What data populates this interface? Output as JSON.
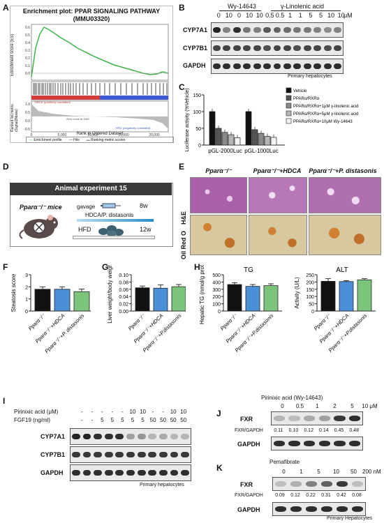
{
  "panels": {
    "A": "A",
    "B": "B",
    "C": "C",
    "D": "D",
    "E": "E",
    "F": "F",
    "G": "G",
    "H": "H",
    "I": "I",
    "J": "J",
    "K": "K"
  },
  "gsea": {
    "title": "Enrichment plot: PPAR SIGNALING PATHWAY",
    "subtitle": "(MMU03320)",
    "ylabel_top": "Enrichment score (ES)",
    "ylabel_bottom": "Ranked list metric (Signal2Noise)",
    "xlabel": "Rank in Ordered Dataset",
    "pos_label": "'HDCA' (positively correlated)",
    "neg_label": "'HFD' (negatively correlated)",
    "zero_cross": "Zero cross at 5387",
    "legend": [
      "Enrichment profile",
      "Hits",
      "Ranking metric scores"
    ],
    "yticks_top": [
      "0.6",
      "0.5",
      "0.4",
      "0.3",
      "0.2",
      "0.1",
      "0.0"
    ],
    "yticks_bottom": [
      "1.0",
      "0.5",
      "0.0",
      "-0.5"
    ],
    "xticks": [
      "0",
      "5,000",
      "10,000",
      "15,000",
      "20,000"
    ]
  },
  "blotB": {
    "group1": "Wy-14643",
    "group2": "γ-Linolenic acid",
    "doses": [
      "0",
      "10",
      "0",
      "10",
      "10",
      "0.5",
      "0.5",
      "1",
      "1",
      "5",
      "5",
      "10",
      "10"
    ],
    "unit": "μM",
    "rows": [
      "CYP7A1",
      "CYP7B1",
      "GAPDH"
    ],
    "caption": "Primary hepatocytes"
  },
  "chart_data": [
    {
      "type": "bar",
      "panel": "C",
      "ylabel": "Luciferase activity (%Vehicle)",
      "ylim": [
        0,
        150
      ],
      "yticks": [
        "0",
        "50",
        "100",
        "150"
      ],
      "categories": [
        "pGL-2000Luc",
        "pGL-1000Luc"
      ],
      "series": [
        {
          "name": "Vehicle",
          "values": [
            100,
            100
          ],
          "color": "#111111"
        },
        {
          "name": "PPARα/RXRα",
          "values": [
            50,
            46
          ],
          "color": "#555555"
        },
        {
          "name": "PPARα/RXRα+1μM γ-linolenic acid",
          "values": [
            38,
            35
          ],
          "color": "#8a8a8a"
        },
        {
          "name": "PPARα/RXRα+5μM γ-linolenic acid",
          "values": [
            31,
            26
          ],
          "color": "#b5b5b5"
        },
        {
          "name": "PPARα/RXRα+10μM Wy-14643",
          "values": [
            22,
            23
          ],
          "color": "#f2f2f2"
        }
      ]
    },
    {
      "type": "bar",
      "panel": "F",
      "ylabel": "Steatosis score",
      "ylim": [
        0,
        3
      ],
      "yticks": [
        "0",
        "1",
        "2",
        "3"
      ],
      "categories": [
        "Pparα⁻/⁻",
        "Pparα⁻/⁻+HDCA",
        "Pparα⁻/⁻+P. distasonis"
      ],
      "values": [
        1.8,
        1.8,
        1.6
      ],
      "errors": [
        0.2,
        0.2,
        0.22
      ],
      "colors": [
        "#111111",
        "#4a90d9",
        "#7cc47c"
      ]
    },
    {
      "type": "bar",
      "panel": "G",
      "ylabel": "Liver weight/body weight",
      "ylim": [
        0,
        0.1
      ],
      "yticks": [
        "0.00",
        "0.02",
        "0.04",
        "0.06",
        "0.08",
        "0.10"
      ],
      "categories": [
        "Pparα⁻/⁻",
        "Pparα⁻/⁻+HDCA",
        "Pparα⁻/⁻+P.distasonis"
      ],
      "values": [
        0.064,
        0.063,
        0.067
      ],
      "errors": [
        0.005,
        0.009,
        0.006
      ],
      "colors": [
        "#111111",
        "#4a90d9",
        "#7cc47c"
      ]
    },
    {
      "type": "bar",
      "panel": "H-TG",
      "title": "TG",
      "ylabel": "Hepatic TG (nmol/g prot.)",
      "ylim": [
        0,
        500
      ],
      "yticks": [
        "0",
        "100",
        "200",
        "300",
        "400",
        "500"
      ],
      "categories": [
        "Pparα⁻/⁻",
        "Pparα⁻/⁻+HDCA",
        "Pparα⁻/⁻+P.distasonis"
      ],
      "values": [
        365,
        340,
        350
      ],
      "errors": [
        25,
        25,
        25
      ],
      "colors": [
        "#111111",
        "#4a90d9",
        "#7cc47c"
      ]
    },
    {
      "type": "bar",
      "panel": "H-ALT",
      "title": "ALT",
      "ylabel": "Activity (U/L)",
      "ylim": [
        0,
        250
      ],
      "yticks": [
        "0",
        "50",
        "100",
        "150",
        "200",
        "250"
      ],
      "categories": [
        "Pparα⁻/⁻",
        "Pparα⁻/⁻+HDCA",
        "Pparα⁻/⁻+P.distasonis"
      ],
      "values": [
        205,
        203,
        215
      ],
      "errors": [
        18,
        6,
        8
      ],
      "colors": [
        "#111111",
        "#4a90d9",
        "#7cc47c"
      ]
    }
  ],
  "animal": {
    "title": "Animal experiment 15",
    "mice": "Pparα⁻/⁻ mice",
    "gavage": "gavage",
    "treat": "HDCA/P. distasonis",
    "hfd": "HFD",
    "w8": "8w",
    "w12": "12w"
  },
  "histo": {
    "cols": [
      "Pparα⁻/⁻",
      "Pparα⁻/⁻+HDCA",
      "Pparα⁻/⁻+P. distasonis"
    ],
    "rows": [
      "H&E",
      "Oil Red O"
    ]
  },
  "blotI": {
    "row1_label": "Pirinixic acid (μM)",
    "row1": [
      "-",
      "-",
      "-",
      "-",
      "-",
      "10",
      "10",
      "-",
      "-",
      "10",
      "10"
    ],
    "row2_label": "FGF19 (ng/ml)",
    "row2": [
      "-",
      "-",
      "5",
      "5",
      "5",
      "5",
      "5",
      "50",
      "50",
      "50",
      "50"
    ],
    "rows": [
      "CYP7A1",
      "CYP7B1",
      "GAPDH"
    ],
    "caption": "Primary hepatocytes"
  },
  "blotJ": {
    "title": "Pirinixic acid (Wy-14643)",
    "doses": [
      "0",
      "0.5",
      "1",
      "2",
      "5",
      "10 μM"
    ],
    "ratio_label": "FXR/GAPDH",
    "ratios": [
      "0.11",
      "0.10",
      "0.12",
      "0.14",
      "0.45",
      "0.48"
    ],
    "rows": [
      "FXR",
      "GAPDH"
    ]
  },
  "blotK": {
    "title": "Pemafibrate",
    "doses": [
      "0",
      "1",
      "5",
      "10",
      "50",
      "200 nM"
    ],
    "ratio_label": "FXR/GAPDH",
    "ratios": [
      "0.09",
      "0.12",
      "0.22",
      "0.31",
      "0.42",
      "0.08"
    ],
    "rows": [
      "FXR",
      "GAPDH"
    ],
    "caption": "Primary Hepatocytes"
  }
}
